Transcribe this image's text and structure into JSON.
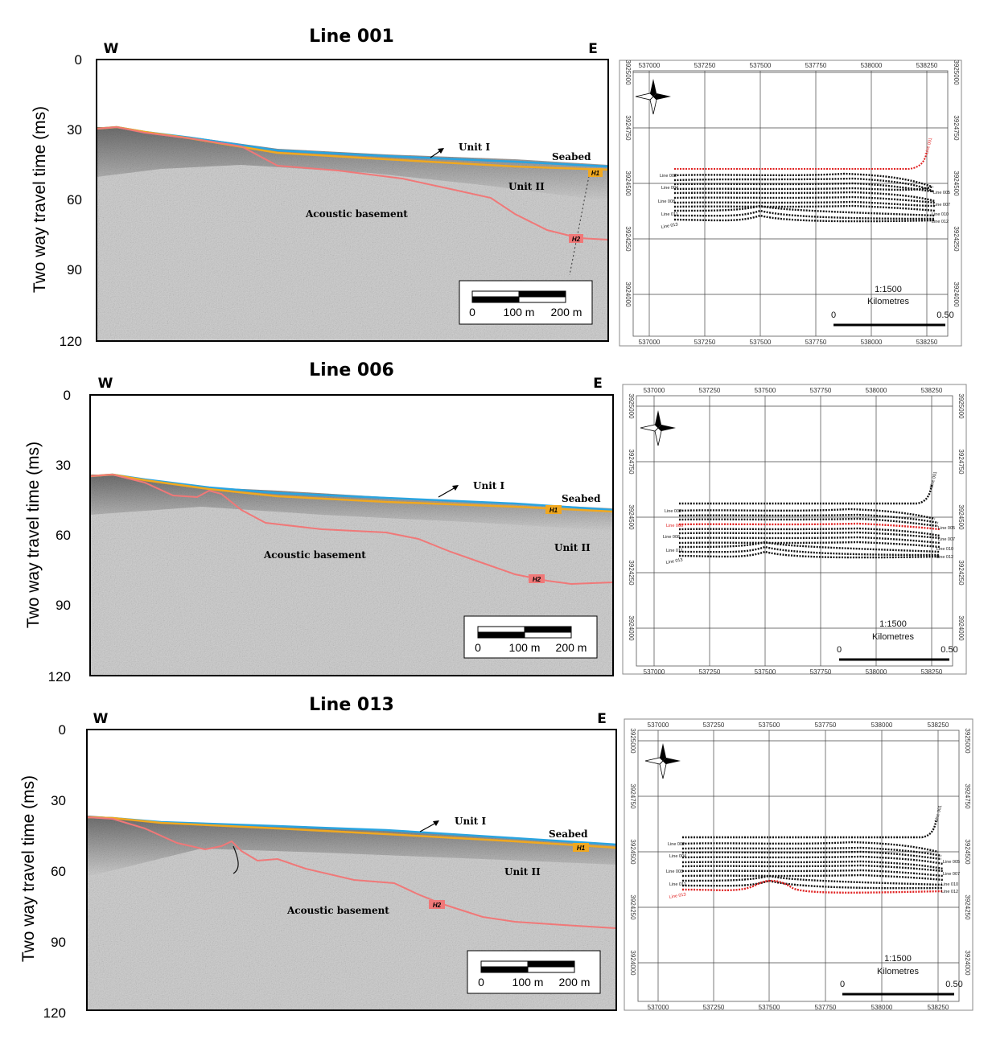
{
  "panels": [
    {
      "title": "Line 001",
      "west": "W",
      "east": "E",
      "ylabel": "Two way travel time (ms)",
      "yticks": [
        "0",
        "30",
        "60",
        "90",
        "120"
      ],
      "labels": {
        "unit_i": "Unit I",
        "seabed": "Seabed",
        "unit_ii": "Unit II",
        "acoustic_basement": "Acoustic basement",
        "h1": "H1",
        "h2": "H2"
      },
      "scalebar": {
        "l0": "0",
        "l100": "100 m",
        "l200": "200 m"
      },
      "map": {
        "xticks": [
          "537000",
          "537250",
          "537500",
          "537750",
          "538000",
          "538250"
        ],
        "yticks": [
          "3925000",
          "3924750",
          "3924500",
          "3924250",
          "3924000"
        ],
        "scale": "1:1500",
        "units": "Kilometres",
        "s0": "0",
        "s1": "0.50",
        "line_labels": [
          "Line 001",
          "Line 002",
          "Line 003",
          "Line 004",
          "Line 005",
          "Line 006",
          "Line 007",
          "Line 008",
          "Line 009",
          "Line 010",
          "Line 011",
          "Line 012",
          "Line 013"
        ],
        "highlight": "Line 001"
      }
    },
    {
      "title": "Line 006",
      "west": "W",
      "east": "E",
      "ylabel": "Two way travel time (ms)",
      "yticks": [
        "0",
        "30",
        "60",
        "90",
        "120"
      ],
      "labels": {
        "unit_i": "Unit I",
        "seabed": "Seabed",
        "unit_ii": "Unit II",
        "acoustic_basement": "Acoustic basement",
        "h1": "H1",
        "h2": "H2"
      },
      "scalebar": {
        "l0": "0",
        "l100": "100 m",
        "l200": "200 m"
      },
      "map": {
        "xticks": [
          "537000",
          "537250",
          "537500",
          "537750",
          "538000",
          "538250"
        ],
        "yticks": [
          "3925000",
          "3924750",
          "3924500",
          "3924250",
          "3924000"
        ],
        "scale": "1:1500",
        "units": "Kilometres",
        "s0": "0",
        "s1": "0.50",
        "line_labels": [
          "Line 001",
          "Line 002",
          "Line 003",
          "Line 004",
          "Line 005",
          "Line 006",
          "Line 007",
          "Line 008",
          "Line 009",
          "Line 010",
          "Line 011",
          "Line 012",
          "Line 013"
        ],
        "highlight": "Line 006"
      }
    },
    {
      "title": "Line 013",
      "west": "W",
      "east": "E",
      "ylabel": "Two way travel time (ms)",
      "yticks": [
        "0",
        "30",
        "60",
        "90",
        "120"
      ],
      "labels": {
        "unit_i": "Unit I",
        "seabed": "Seabed",
        "unit_ii": "Unit II",
        "acoustic_basement": "Acoustic basement",
        "h1": "H1",
        "h2": "H2"
      },
      "scalebar": {
        "l0": "0",
        "l100": "100 m",
        "l200": "200 m"
      },
      "map": {
        "xticks": [
          "537000",
          "537250",
          "537500",
          "537750",
          "538000",
          "538250"
        ],
        "yticks": [
          "3925000",
          "3924750",
          "3924500",
          "3924250",
          "3924000"
        ],
        "scale": "1:1500",
        "units": "Kilometres",
        "s0": "0",
        "s1": "0.50",
        "line_labels": [
          "Line 001",
          "Line 002",
          "Line 003",
          "Line 004",
          "Line 005",
          "Line 006",
          "Line 007",
          "Line 008",
          "Line 009",
          "Line 010",
          "Line 011",
          "Line 012",
          "Line 013"
        ],
        "highlight": "Line 013"
      }
    }
  ],
  "colors": {
    "seabed": "#2aa4e0",
    "h1": "#f0a820",
    "h2": "#f07878",
    "highlight": "#e02020",
    "track": "#111111"
  }
}
